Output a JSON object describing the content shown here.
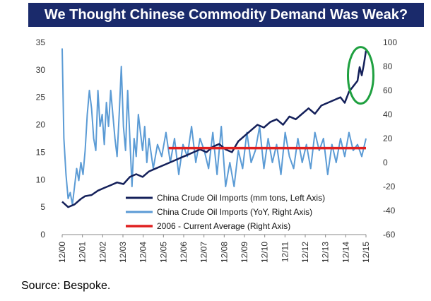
{
  "chart_data": {
    "type": "line",
    "title": "We Thought Chinese Commodity Demand Was Weak?",
    "source": "Source: Bespoke.",
    "x_labels": [
      "12/00",
      "12/01",
      "12/02",
      "12/03",
      "12/04",
      "12/05",
      "12/06",
      "12/07",
      "12/08",
      "12/09",
      "12/10",
      "12/11",
      "12/12",
      "12/13",
      "12/14",
      "12/15"
    ],
    "y_left": {
      "min": 0,
      "max": 35,
      "ticks": [
        "0",
        "5",
        "10",
        "15",
        "20",
        "25",
        "30",
        "35"
      ]
    },
    "y_right": {
      "min": -60,
      "max": 100,
      "ticks": [
        "-60",
        "-40",
        "-20",
        "0",
        "20",
        "40",
        "60",
        "80",
        "100"
      ]
    },
    "series": [
      {
        "name": "China Crude Oil Imports (mm tons, Left Axis)",
        "axis": "left",
        "color": "#14205a",
        "x": [
          2000.92,
          2001.2,
          2001.5,
          2001.8,
          2002.0,
          2002.3,
          2002.6,
          2002.9,
          2003.2,
          2003.5,
          2003.8,
          2004.1,
          2004.4,
          2004.7,
          2005.0,
          2005.3,
          2005.6,
          2005.9,
          2006.2,
          2006.5,
          2006.8,
          2007.1,
          2007.4,
          2007.7,
          2008.0,
          2008.3,
          2008.6,
          2008.9,
          2009.2,
          2009.5,
          2009.8,
          2010.1,
          2010.4,
          2010.7,
          2011.0,
          2011.3,
          2011.6,
          2011.9,
          2012.2,
          2012.5,
          2012.8,
          2013.1,
          2013.4,
          2013.7,
          2014.0,
          2014.2,
          2014.4,
          2014.6,
          2014.8,
          2014.9,
          2015.0,
          2015.1,
          2015.2
        ],
        "values": [
          6.0,
          5.0,
          5.5,
          6.5,
          7.0,
          7.2,
          8.0,
          8.5,
          9.0,
          9.5,
          9.2,
          10.5,
          11.0,
          10.5,
          11.5,
          12.0,
          12.5,
          13.0,
          13.5,
          14.0,
          14.5,
          15.0,
          15.5,
          15.0,
          16.0,
          16.5,
          15.5,
          15.0,
          17.0,
          18.0,
          19.0,
          20.0,
          19.5,
          20.5,
          21.0,
          20.0,
          21.5,
          21.0,
          22.0,
          23.0,
          22.0,
          23.5,
          24.0,
          24.5,
          25.0,
          24.0,
          26.0,
          27.0,
          28.0,
          30.5,
          29.0,
          31.0,
          33.5
        ]
      },
      {
        "name": "China Crude Oil Imports (YoY, Right Axis)",
        "axis": "right",
        "color": "#5b9bd5",
        "x": [
          2000.92,
          2001.0,
          2001.1,
          2001.2,
          2001.3,
          2001.4,
          2001.5,
          2001.6,
          2001.7,
          2001.8,
          2001.9,
          2002.0,
          2002.1,
          2002.2,
          2002.3,
          2002.4,
          2002.5,
          2002.6,
          2002.7,
          2002.8,
          2002.9,
          2003.0,
          2003.1,
          2003.2,
          2003.3,
          2003.4,
          2003.5,
          2003.6,
          2003.7,
          2003.8,
          2003.9,
          2004.0,
          2004.1,
          2004.2,
          2004.3,
          2004.4,
          2004.5,
          2004.6,
          2004.7,
          2004.8,
          2004.9,
          2005.0,
          2005.2,
          2005.4,
          2005.6,
          2005.8,
          2006.0,
          2006.2,
          2006.4,
          2006.6,
          2006.8,
          2007.0,
          2007.2,
          2007.4,
          2007.6,
          2007.8,
          2008.0,
          2008.2,
          2008.4,
          2008.6,
          2008.8,
          2009.0,
          2009.2,
          2009.4,
          2009.6,
          2009.8,
          2010.0,
          2010.2,
          2010.4,
          2010.6,
          2010.8,
          2011.0,
          2011.2,
          2011.4,
          2011.6,
          2011.8,
          2012.0,
          2012.2,
          2012.4,
          2012.6,
          2012.8,
          2013.0,
          2013.2,
          2013.4,
          2013.6,
          2013.8,
          2014.0,
          2014.2,
          2014.4,
          2014.6,
          2014.8,
          2015.0,
          2015.2
        ],
        "values": [
          95,
          20,
          -10,
          -30,
          -25,
          -35,
          -20,
          -5,
          -15,
          0,
          -10,
          10,
          40,
          60,
          45,
          20,
          10,
          60,
          30,
          40,
          15,
          50,
          30,
          60,
          40,
          20,
          5,
          40,
          80,
          30,
          10,
          60,
          20,
          -20,
          20,
          5,
          40,
          25,
          10,
          30,
          0,
          20,
          -5,
          15,
          5,
          25,
          0,
          20,
          -10,
          15,
          5,
          30,
          0,
          20,
          10,
          -5,
          25,
          -10,
          30,
          -20,
          0,
          -20,
          10,
          -5,
          25,
          0,
          10,
          30,
          -5,
          20,
          0,
          15,
          -10,
          25,
          5,
          -5,
          20,
          0,
          15,
          -5,
          25,
          10,
          20,
          -10,
          15,
          0,
          20,
          5,
          25,
          10,
          15,
          5,
          20
        ]
      },
      {
        "name": "2006 - Current Average (Right Axis)",
        "axis": "right",
        "color": "#e02020",
        "x": [
          2005.92,
          2015.2
        ],
        "values": [
          12,
          12
        ]
      }
    ],
    "legend_position": "bottom-center",
    "annotation": "green circle highlighting 2015 spike"
  }
}
